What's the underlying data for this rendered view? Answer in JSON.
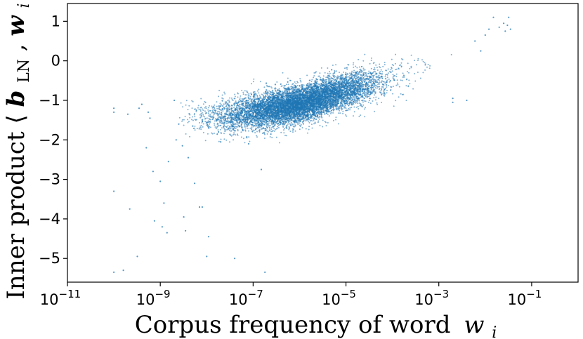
{
  "chart_data": {
    "type": "scatter",
    "title": "",
    "xlabel": "Corpus frequency of word",
    "xlabel_math": "w",
    "xlabel_math_sub": "i",
    "ylabel_prefix": "Inner product ⟨",
    "ylabel_b": "b",
    "ylabel_b_sub": "LN",
    "ylabel_sep": ", ",
    "ylabel_w": "w",
    "ylabel_w_sub": "i",
    "ylabel_suffix": "⟩",
    "x_scale": "log",
    "xlim": [
      1e-11,
      1.0
    ],
    "ylim": [
      -5.6,
      1.45
    ],
    "x_ticks": [
      {
        "value": 1e-11,
        "base": "10",
        "exp": "−11"
      },
      {
        "value": 1e-09,
        "base": "10",
        "exp": "−9"
      },
      {
        "value": 1e-07,
        "base": "10",
        "exp": "−7"
      },
      {
        "value": 1e-05,
        "base": "10",
        "exp": "−5"
      },
      {
        "value": 0.001,
        "base": "10",
        "exp": "−3"
      },
      {
        "value": 0.1,
        "base": "10",
        "exp": "−1"
      }
    ],
    "y_ticks": [
      {
        "value": 1,
        "label": "1"
      },
      {
        "value": 0,
        "label": "0"
      },
      {
        "value": -1,
        "label": "−1"
      },
      {
        "value": -2,
        "label": "−2"
      },
      {
        "value": -3,
        "label": "−3"
      },
      {
        "value": -4,
        "label": "−4"
      },
      {
        "value": -5,
        "label": "−5"
      }
    ],
    "grid": false,
    "legend": "none",
    "marker_color": "#1f77b4",
    "dense_cloud": {
      "description_points": "log10 frequency vs inner product, main trend",
      "trend": [
        [
          -8.0,
          -1.45
        ],
        [
          -7.0,
          -1.3
        ],
        [
          -6.0,
          -1.1
        ],
        [
          -5.0,
          -0.75
        ],
        [
          -4.0,
          -0.45
        ],
        [
          -3.0,
          -0.1
        ],
        [
          -2.0,
          0.45
        ],
        [
          -1.6,
          0.9
        ]
      ]
    },
    "points": [
      [
        1e-10,
        -1.2
      ],
      [
        1e-10,
        -1.3
      ],
      [
        1e-10,
        -3.3
      ],
      [
        1e-10,
        -5.35
      ],
      [
        1.6e-10,
        -5.3
      ],
      [
        2e-10,
        -1.35
      ],
      [
        2.2e-10,
        -3.75
      ],
      [
        3.5e-10,
        -1.2
      ],
      [
        4e-10,
        -1.1
      ],
      [
        3.2e-10,
        -4.95
      ],
      [
        5e-10,
        -2.2
      ],
      [
        5.5e-10,
        -1.3
      ],
      [
        6e-10,
        -1.45
      ],
      [
        7e-10,
        -2.8
      ],
      [
        7.5e-10,
        -4.05
      ],
      [
        1e-09,
        -3.05
      ],
      [
        1.2e-09,
        -3.6
      ],
      [
        1.5e-09,
        -2.55
      ],
      [
        1.1e-09,
        -4.2
      ],
      [
        1.4e-09,
        -4.35
      ],
      [
        2e-09,
        -1.0
      ],
      [
        2.2e-09,
        -2.0
      ],
      [
        2.5e-09,
        -1.6
      ],
      [
        3e-09,
        -2.15
      ],
      [
        3.2e-09,
        -3.95
      ],
      [
        3.5e-09,
        -4.3
      ],
      [
        4e-09,
        -2.45
      ],
      [
        5e-09,
        -1.65
      ],
      [
        5.5e-09,
        -3.1
      ],
      [
        6e-09,
        -1.25
      ],
      [
        7e-09,
        -3.7
      ],
      [
        8e-09,
        -3.7
      ],
      [
        1e-08,
        -4.95
      ],
      [
        1.1e-08,
        -4.45
      ],
      [
        1.2e-08,
        -1.4
      ],
      [
        1.5e-08,
        -1.25
      ],
      [
        1.8e-08,
        -1.8
      ],
      [
        2e-08,
        -2.05
      ],
      [
        2.5e-08,
        -1.5
      ],
      [
        3e-08,
        -1.55
      ],
      [
        3.5e-08,
        -1.2
      ],
      [
        4e-08,
        -5.0
      ],
      [
        5e-08,
        -1.35
      ],
      [
        6e-08,
        -1.75
      ],
      [
        8e-08,
        -2.1
      ],
      [
        1e-07,
        -1.45
      ],
      [
        1.2e-07,
        -1.35
      ],
      [
        1.5e-07,
        -2.75
      ],
      [
        1.8e-07,
        -5.35
      ],
      [
        2.2e-07,
        -0.65
      ],
      [
        2.6e-07,
        -0.85
      ],
      [
        3e-07,
        -0.6
      ],
      [
        0.002,
        -1.05
      ],
      [
        0.002,
        -0.95
      ],
      [
        0.004,
        -1.0
      ],
      [
        0.006,
        0.5
      ],
      [
        0.008,
        0.25
      ],
      [
        0.01,
        0.65
      ],
      [
        0.012,
        0.8
      ],
      [
        0.015,
        1.1
      ],
      [
        0.02,
        0.85
      ],
      [
        0.025,
        0.95
      ],
      [
        0.027,
        0.75
      ],
      [
        0.03,
        0.9
      ],
      [
        0.032,
        1.1
      ],
      [
        0.035,
        0.8
      ]
    ]
  }
}
